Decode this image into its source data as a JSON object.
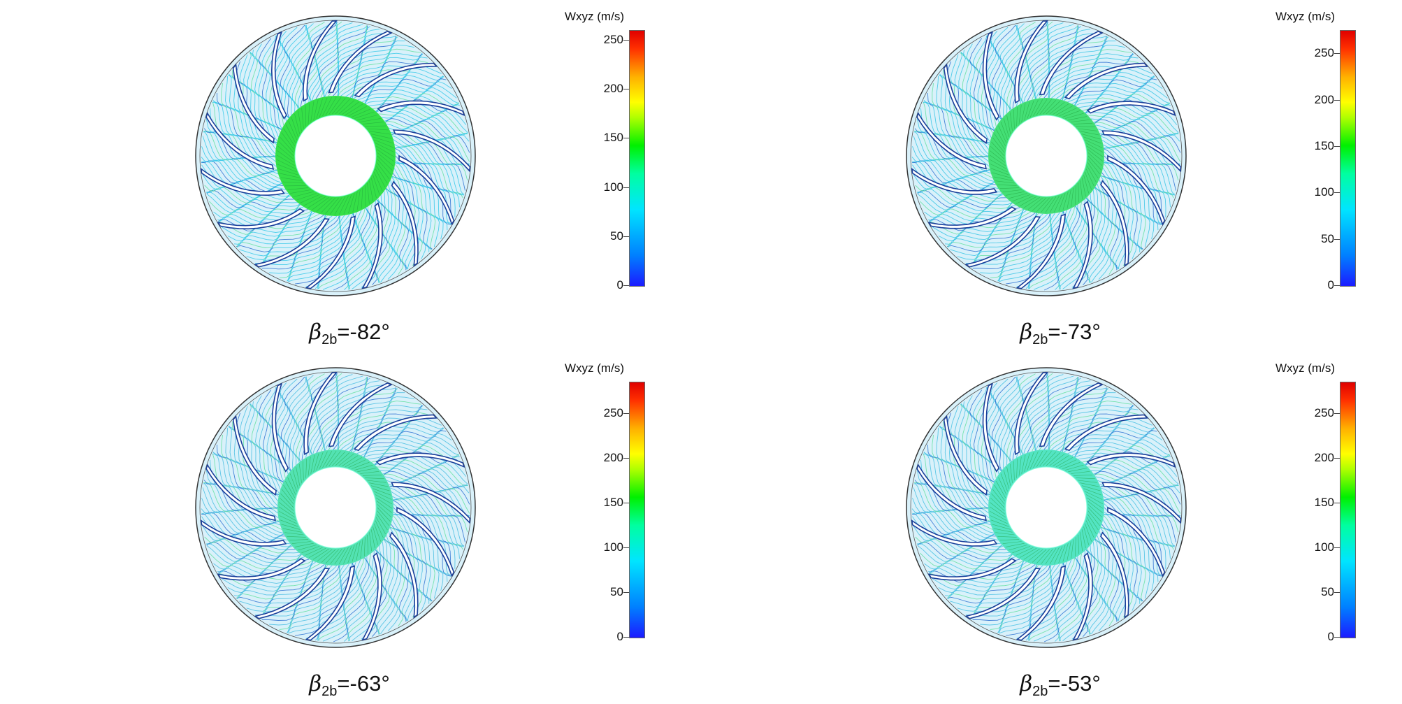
{
  "panels": [
    {
      "id": "p1",
      "beta_symbol": "β",
      "subscript": "2b",
      "angle_label": "=-82°",
      "colorbar": {
        "title": "Wxyz (m/s)",
        "ticks": [
          "0",
          "50",
          "100",
          "150",
          "200",
          "250"
        ],
        "max": 260
      },
      "hub_color": "#22dd33",
      "hub_ring_fraction": 0.43,
      "flow_color": "#33c8e8"
    },
    {
      "id": "p2",
      "beta_symbol": "β",
      "subscript": "2b",
      "angle_label": "=-73°",
      "colorbar": {
        "title": "Wxyz (m/s)",
        "ticks": [
          "0",
          "50",
          "100",
          "150",
          "200",
          "250"
        ],
        "max": 275
      },
      "hub_color": "#33dd66",
      "hub_ring_fraction": 0.36,
      "flow_color": "#36c4e4"
    },
    {
      "id": "p3",
      "beta_symbol": "β",
      "subscript": "2b",
      "angle_label": "=-63°",
      "colorbar": {
        "title": "Wxyz (m/s)",
        "ticks": [
          "0",
          "50",
          "100",
          "150",
          "200",
          "250"
        ],
        "max": 285
      },
      "hub_color": "#44e0aa",
      "hub_ring_fraction": 0.33,
      "flow_color": "#48bde0"
    },
    {
      "id": "p4",
      "beta_symbol": "β",
      "subscript": "2b",
      "angle_label": "=-53°",
      "colorbar": {
        "title": "Wxyz (m/s)",
        "ticks": [
          "0",
          "50",
          "100",
          "150",
          "200",
          "250"
        ],
        "max": 285
      },
      "hub_color": "#44e2bb",
      "hub_ring_fraction": 0.33,
      "flow_color": "#45bfe2"
    }
  ]
}
